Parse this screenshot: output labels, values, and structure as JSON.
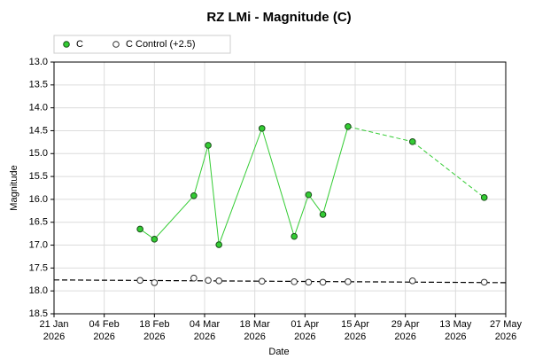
{
  "chart_data": {
    "type": "line",
    "title": "RZ LMi - Magnitude (C)",
    "x_label": "Date",
    "y_label": "Magnitude",
    "y_inverted": true,
    "grid": true,
    "legend": "top-left",
    "xlim": [
      "2026-01-21",
      "2026-05-27"
    ],
    "xticks": [
      {
        "value": "2026-01-21",
        "label": "21 Jan 2026"
      },
      {
        "value": "2026-02-04",
        "label": "04 Feb 2026"
      },
      {
        "value": "2026-02-18",
        "label": "18 Feb 2026"
      },
      {
        "value": "2026-03-04",
        "label": "04 Mar 2026"
      },
      {
        "value": "2026-03-18",
        "label": "18 Mar 2026"
      },
      {
        "value": "2026-04-01",
        "label": "01 Apr 2026"
      },
      {
        "value": "2026-04-15",
        "label": "15 Apr 2026"
      },
      {
        "value": "2026-04-29",
        "label": "29 Apr 2026"
      },
      {
        "value": "2026-05-13",
        "label": "13 May 2026"
      },
      {
        "value": "2026-05-27",
        "label": "27 May 2026"
      }
    ],
    "ylim": [
      13,
      18.5
    ],
    "yticks": [
      {
        "value": 13,
        "label": "13.0"
      },
      13.5,
      {
        "value": 14,
        "label": "14.0"
      },
      14.5,
      {
        "value": 15,
        "label": "15.0"
      },
      15.5,
      {
        "value": 16,
        "label": "16.0"
      },
      16.5,
      {
        "value": 17,
        "label": "17.0"
      },
      17.5,
      {
        "value": 18,
        "label": "18.0"
      },
      18.5
    ],
    "x": [
      "2026-02-14",
      "2026-02-18",
      "2026-03-01",
      "2026-03-05",
      "2026-03-08",
      "2026-03-20",
      "2026-03-29",
      "2026-04-02",
      "2026-04-06",
      "2026-04-13",
      "2026-05-01",
      "2026-05-21"
    ],
    "series": [
      {
        "name": "C",
        "color": "#33cc33",
        "line": true,
        "values": [
          16.65,
          16.87,
          15.92,
          14.82,
          16.99,
          14.45,
          16.81,
          15.9,
          16.33,
          14.41,
          14.74,
          15.96
        ]
      },
      {
        "name": "C Control (+2.5)",
        "color": "#ffffff",
        "line": false,
        "values": [
          17.77,
          17.82,
          17.72,
          17.77,
          17.78,
          17.79,
          17.8,
          17.81,
          17.81,
          17.8,
          17.78,
          17.81
        ]
      }
    ],
    "trend_line": {
      "x": [
        "2026-01-21",
        "2026-05-27"
      ],
      "values": [
        17.76,
        17.82
      ],
      "color": "#000000"
    }
  }
}
